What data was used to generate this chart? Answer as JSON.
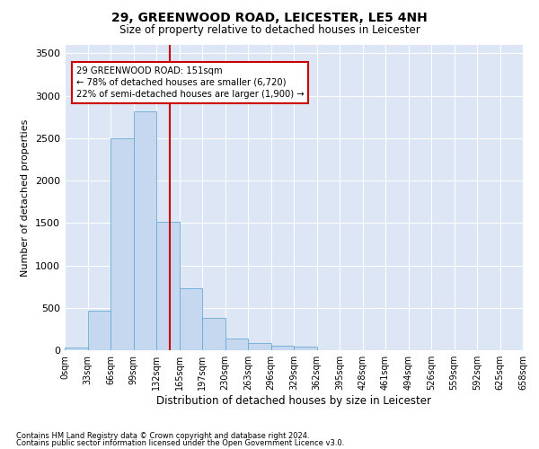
{
  "title1": "29, GREENWOOD ROAD, LEICESTER, LE5 4NH",
  "title2": "Size of property relative to detached houses in Leicester",
  "xlabel": "Distribution of detached houses by size in Leicester",
  "ylabel": "Number of detached properties",
  "bin_labels": [
    "0sqm",
    "33sqm",
    "66sqm",
    "99sqm",
    "132sqm",
    "165sqm",
    "197sqm",
    "230sqm",
    "263sqm",
    "296sqm",
    "329sqm",
    "362sqm",
    "395sqm",
    "428sqm",
    "461sqm",
    "494sqm",
    "526sqm",
    "559sqm",
    "592sqm",
    "625sqm",
    "658sqm"
  ],
  "bar_values": [
    30,
    470,
    2500,
    2820,
    1510,
    730,
    380,
    140,
    90,
    55,
    40,
    0,
    0,
    0,
    0,
    0,
    0,
    0,
    0,
    0
  ],
  "bar_color": "#c5d8ef",
  "bar_edge_color": "#6aaad4",
  "annotation_line1": "29 GREENWOOD ROAD: 151sqm",
  "annotation_line2": "← 78% of detached houses are smaller (6,720)",
  "annotation_line3": "22% of semi-detached houses are larger (1,900) →",
  "annotation_box_color": "#cc0000",
  "vline_color": "#cc0000",
  "ylim": [
    0,
    3600
  ],
  "yticks": [
    0,
    500,
    1000,
    1500,
    2000,
    2500,
    3000,
    3500
  ],
  "footer1": "Contains HM Land Registry data © Crown copyright and database right 2024.",
  "footer2": "Contains public sector information licensed under the Open Government Licence v3.0.",
  "plot_bg_color": "#dce6f5"
}
